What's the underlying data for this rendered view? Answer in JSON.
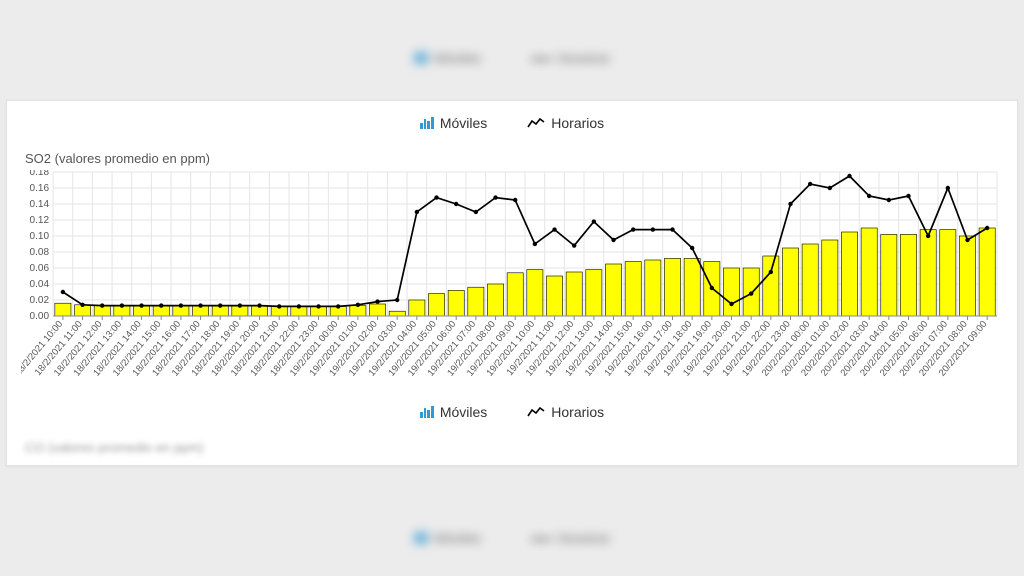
{
  "toolbar": {
    "moviles": "Móviles",
    "horarios": "Horarios"
  },
  "chart": {
    "title": "SO2 (valores promedio en ppm)",
    "type": "bar+line",
    "ylim": [
      0,
      0.18
    ],
    "ytick_step": 0.02,
    "bar_color": "#ffff00",
    "bar_border": "#000000",
    "line_color": "#000000",
    "marker_color": "#000000",
    "grid_color": "#e5e5e5",
    "background": "#ffffff",
    "axis_color": "#888888",
    "label_fontsize": 10,
    "title_fontsize": 13,
    "categories": [
      "18/2/2021 10:00",
      "18/2/2021 11:00",
      "18/2/2021 12:00",
      "18/2/2021 13:00",
      "18/2/2021 14:00",
      "18/2/2021 15:00",
      "18/2/2021 16:00",
      "18/2/2021 17:00",
      "18/2/2021 18:00",
      "18/2/2021 19:00",
      "18/2/2021 20:00",
      "18/2/2021 21:00",
      "18/2/2021 22:00",
      "18/2/2021 23:00",
      "19/2/2021 00:00",
      "19/2/2021 01:00",
      "19/2/2021 02:00",
      "19/2/2021 03:00",
      "19/2/2021 04:00",
      "19/2/2021 05:00",
      "19/2/2021 06:00",
      "19/2/2021 07:00",
      "19/2/2021 08:00",
      "19/2/2021 09:00",
      "19/2/2021 10:00",
      "19/2/2021 11:00",
      "19/2/2021 12:00",
      "19/2/2021 13:00",
      "19/2/2021 14:00",
      "19/2/2021 15:00",
      "19/2/2021 16:00",
      "19/2/2021 17:00",
      "19/2/2021 18:00",
      "19/2/2021 19:00",
      "19/2/2021 20:00",
      "19/2/2021 21:00",
      "19/2/2021 22:00",
      "19/2/2021 23:00",
      "20/2/2021 00:00",
      "20/2/2021 01:00",
      "20/2/2021 02:00",
      "20/2/2021 03:00",
      "20/2/2021 04:00",
      "20/2/2021 05:00",
      "20/2/2021 06:00",
      "20/2/2021 07:00",
      "20/2/2021 08:00",
      "20/2/2021 09:00"
    ],
    "bar_values": [
      0.016,
      0.014,
      0.013,
      0.013,
      0.013,
      0.013,
      0.013,
      0.013,
      0.013,
      0.013,
      0.013,
      0.012,
      0.012,
      0.012,
      0.012,
      0.013,
      0.015,
      0.006,
      0.02,
      0.028,
      0.032,
      0.036,
      0.04,
      0.054,
      0.058,
      0.05,
      0.055,
      0.058,
      0.065,
      0.068,
      0.07,
      0.072,
      0.072,
      0.068,
      0.06,
      0.06,
      0.075,
      0.085,
      0.09,
      0.095,
      0.105,
      0.11,
      0.102,
      0.102,
      0.108,
      0.108,
      0.1,
      0.11
    ],
    "line_values": [
      0.03,
      0.014,
      0.013,
      0.013,
      0.013,
      0.013,
      0.013,
      0.013,
      0.013,
      0.013,
      0.013,
      0.012,
      0.012,
      0.012,
      0.012,
      0.014,
      0.018,
      0.02,
      0.13,
      0.148,
      0.14,
      0.13,
      0.148,
      0.145,
      0.09,
      0.108,
      0.088,
      0.118,
      0.095,
      0.108,
      0.108,
      0.108,
      0.085,
      0.035,
      0.015,
      0.028,
      0.055,
      0.14,
      0.165,
      0.16,
      0.175,
      0.15,
      0.145,
      0.15,
      0.1,
      0.16,
      0.095,
      0.11
    ]
  },
  "next_chart_title": "CO (valores promedio en ppm)"
}
